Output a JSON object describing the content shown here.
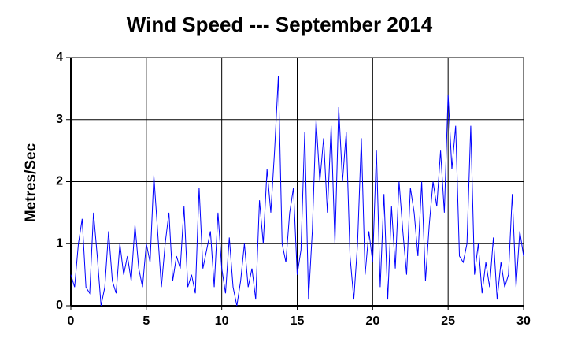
{
  "chart_data": {
    "type": "line",
    "title": "Wind Speed --- September 2014",
    "ylabel": "Metres/Sec",
    "xlim": [
      0,
      30
    ],
    "xticks": [
      0,
      5,
      10,
      15,
      20,
      25,
      30
    ],
    "ylim": [
      0,
      4
    ],
    "yticks": [
      0,
      1,
      2,
      3,
      4
    ],
    "grid": true,
    "series": [
      {
        "color": "#0000ff",
        "x": [
          0,
          0.25,
          0.5,
          0.75,
          1,
          1.25,
          1.5,
          1.75,
          2,
          2.25,
          2.5,
          2.75,
          3,
          3.25,
          3.5,
          3.75,
          4,
          4.25,
          4.5,
          4.75,
          5,
          5.25,
          5.5,
          5.75,
          6,
          6.25,
          6.5,
          6.75,
          7,
          7.25,
          7.5,
          7.75,
          8,
          8.25,
          8.5,
          8.75,
          9,
          9.25,
          9.5,
          9.75,
          10,
          10.25,
          10.5,
          10.75,
          11,
          11.25,
          11.5,
          11.75,
          12,
          12.25,
          12.5,
          12.75,
          13,
          13.25,
          13.5,
          13.75,
          14,
          14.25,
          14.5,
          14.75,
          15,
          15.25,
          15.5,
          15.75,
          16,
          16.25,
          16.5,
          16.75,
          17,
          17.25,
          17.5,
          17.75,
          18,
          18.25,
          18.5,
          18.75,
          19,
          19.25,
          19.5,
          19.75,
          20,
          20.25,
          20.5,
          20.75,
          21,
          21.25,
          21.5,
          21.75,
          22,
          22.25,
          22.5,
          22.75,
          23,
          23.25,
          23.5,
          23.75,
          24,
          24.25,
          24.5,
          24.75,
          25,
          25.25,
          25.5,
          25.75,
          26,
          26.25,
          26.5,
          26.75,
          27,
          27.25,
          27.5,
          27.75,
          28,
          28.25,
          28.5,
          28.75,
          29,
          29.25,
          29.5,
          29.75,
          30
        ],
        "values": [
          0.5,
          0.3,
          1.0,
          1.4,
          0.3,
          0.2,
          1.5,
          0.8,
          0.0,
          0.3,
          1.2,
          0.4,
          0.2,
          1.0,
          0.5,
          0.8,
          0.4,
          1.3,
          0.6,
          0.3,
          1.0,
          0.7,
          2.1,
          1.2,
          0.3,
          1.0,
          1.5,
          0.4,
          0.8,
          0.6,
          1.6,
          0.3,
          0.5,
          0.2,
          1.9,
          0.6,
          0.9,
          1.2,
          0.3,
          1.5,
          0.6,
          0.2,
          1.1,
          0.3,
          0.0,
          0.4,
          1.0,
          0.3,
          0.6,
          0.1,
          1.7,
          1.0,
          2.2,
          1.5,
          2.5,
          3.7,
          1.0,
          0.7,
          1.5,
          1.9,
          0.5,
          0.9,
          2.8,
          0.1,
          1.2,
          3.0,
          2.0,
          2.7,
          1.5,
          2.9,
          1.0,
          3.2,
          2.0,
          2.8,
          0.8,
          0.1,
          1.0,
          2.7,
          0.5,
          1.2,
          0.7,
          2.5,
          0.3,
          1.8,
          0.1,
          1.6,
          0.6,
          2.0,
          1.2,
          0.5,
          1.9,
          1.5,
          0.8,
          2.0,
          0.4,
          1.3,
          2.0,
          1.6,
          2.5,
          1.5,
          3.4,
          2.2,
          2.9,
          0.8,
          0.7,
          1.0,
          2.9,
          0.5,
          1.0,
          0.2,
          0.7,
          0.3,
          1.1,
          0.1,
          0.7,
          0.3,
          0.5,
          1.8,
          0.3,
          1.2,
          0.8
        ]
      }
    ]
  }
}
